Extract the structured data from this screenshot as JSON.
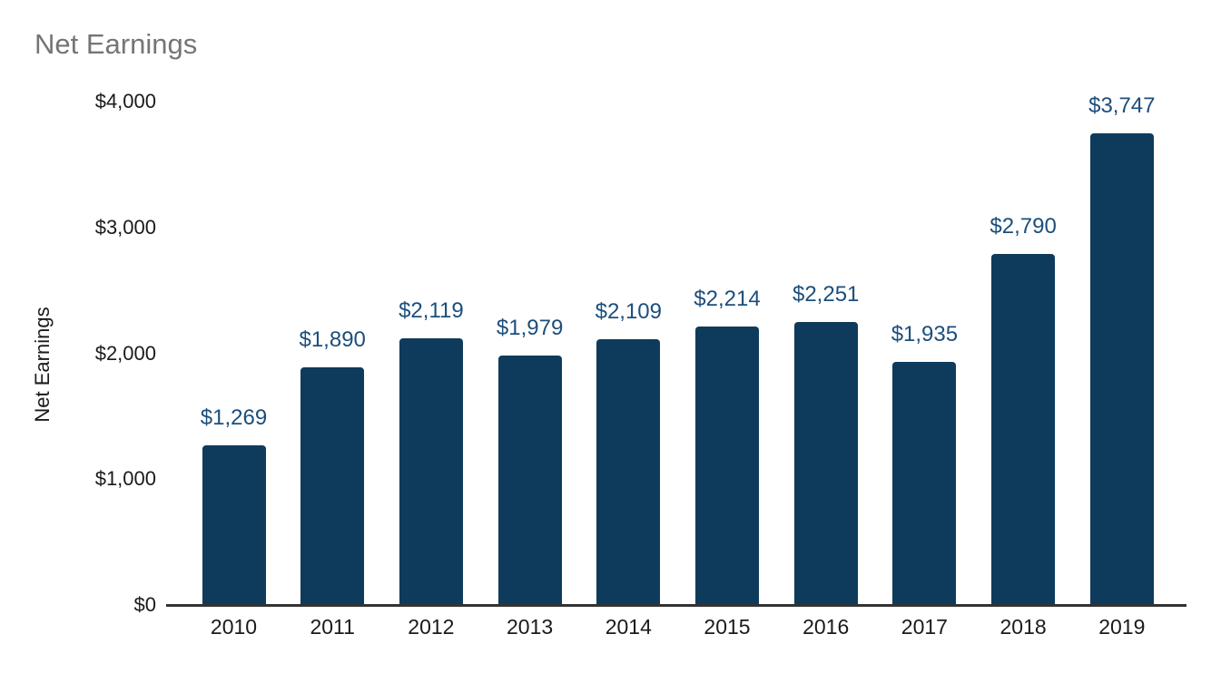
{
  "title": "Net Earnings",
  "chart_data": {
    "type": "bar",
    "title": "Net Earnings",
    "categories": [
      "2010",
      "2011",
      "2012",
      "2013",
      "2014",
      "2015",
      "2016",
      "2017",
      "2018",
      "2019"
    ],
    "values": [
      1269,
      1890,
      2119,
      1979,
      2109,
      2214,
      2251,
      1935,
      2790,
      3747
    ],
    "annotations": [
      "$1,269",
      "$1,890",
      "$2,119",
      "$1,979",
      "$2,109",
      "$2,214",
      "$2,251",
      "$1,935",
      "$2,790",
      "$3,747"
    ],
    "xlabel": "",
    "ylabel": "Net Earnings",
    "ylim": [
      0,
      4000
    ],
    "yticks": [
      {
        "value": 0,
        "label": "$0"
      },
      {
        "value": 1000,
        "label": "$1,000"
      },
      {
        "value": 2000,
        "label": "$2,000"
      },
      {
        "value": 3000,
        "label": "$3,000"
      },
      {
        "value": 4000,
        "label": "$4,000"
      }
    ],
    "grid": false,
    "legend": "none",
    "colors": {
      "bar": "#0e3b5c",
      "annotation": "#1c4e7c",
      "axis_text": "#1a1a1a",
      "title": "#757575",
      "baseline": "#333333"
    }
  }
}
